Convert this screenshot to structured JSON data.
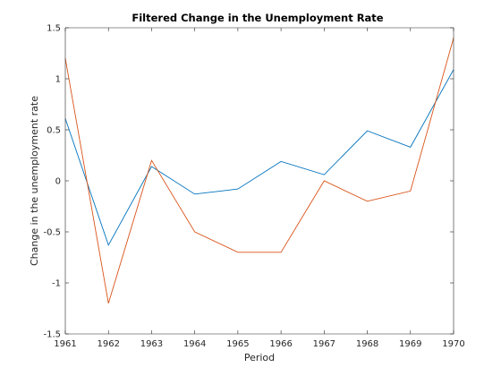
{
  "chart_data": {
    "type": "line",
    "title": "Filtered Change in the Unemployment Rate",
    "xlabel": "Period",
    "ylabel": "Change in the unemployment rate",
    "x": [
      1961,
      1962,
      1963,
      1964,
      1965,
      1966,
      1967,
      1968,
      1969,
      1970
    ],
    "x_ticks": [
      "1961",
      "1962",
      "1963",
      "1964",
      "1965",
      "1966",
      "1967",
      "1968",
      "1969",
      "1970"
    ],
    "y_ticks": [
      "-1.5",
      "-1",
      "-0.5",
      "0",
      "0.5",
      "1",
      "1.5"
    ],
    "xlim": [
      1961,
      1970
    ],
    "ylim": [
      -1.5,
      1.5
    ],
    "grid": false,
    "series": [
      {
        "color": "#0072bd",
        "values": [
          0.61,
          -0.63,
          0.14,
          -0.13,
          -0.08,
          0.19,
          0.06,
          0.49,
          0.33,
          1.09
        ]
      },
      {
        "color": "#d95319",
        "values": [
          1.2,
          -1.2,
          0.2,
          -0.5,
          -0.7,
          -0.7,
          0.0,
          -0.2,
          -0.1,
          1.4
        ]
      }
    ]
  }
}
